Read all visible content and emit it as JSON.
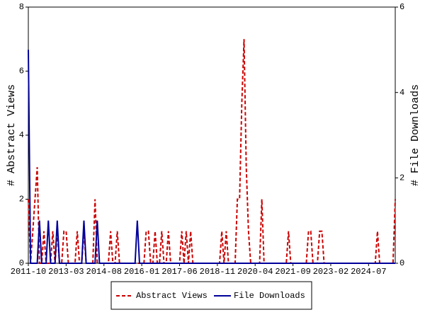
{
  "chart_data": {
    "type": "line",
    "ylabel": "# Abstract Views",
    "y2label": "# File Downloads",
    "ylim": [
      0,
      8
    ],
    "yticks": [
      0,
      2,
      4,
      6,
      8
    ],
    "y2lim": [
      0,
      6
    ],
    "y2ticks": [
      0,
      2,
      4,
      6
    ],
    "categories": [
      "2011-10",
      null,
      null,
      null,
      null,
      null,
      null,
      null,
      null,
      null,
      null,
      null,
      null,
      null,
      null,
      null,
      null,
      "2013-03",
      null,
      null,
      null,
      null,
      null,
      null,
      null,
      null,
      null,
      null,
      null,
      null,
      null,
      null,
      null,
      null,
      "2014-08",
      null,
      null,
      null,
      null,
      null,
      null,
      null,
      null,
      null,
      null,
      null,
      null,
      null,
      null,
      null,
      null,
      "2016-01",
      null,
      null,
      null,
      null,
      null,
      null,
      null,
      null,
      null,
      null,
      null,
      null,
      null,
      null,
      null,
      null,
      "2017-06",
      null,
      null,
      null,
      null,
      null,
      null,
      null,
      null,
      null,
      null,
      null,
      null,
      null,
      null,
      null,
      null,
      "2018-11",
      null,
      null,
      null,
      null,
      null,
      null,
      null,
      null,
      null,
      null,
      null,
      null,
      null,
      null,
      null,
      null,
      "2020-04",
      null,
      null,
      null,
      null,
      null,
      null,
      null,
      null,
      null,
      null,
      null,
      null,
      null,
      null,
      null,
      null,
      "2021-09",
      null,
      null,
      null,
      null,
      null,
      null,
      null,
      null,
      null,
      null,
      null,
      null,
      null,
      null,
      null,
      null,
      "2023-02",
      null,
      null,
      null,
      null,
      null,
      null,
      null,
      null,
      null,
      null,
      null,
      null,
      null,
      null,
      null,
      null,
      "2024-07",
      null,
      null,
      null,
      null,
      null,
      null,
      null,
      null,
      null,
      null,
      null,
      null
    ],
    "series": [
      {
        "name": "Abstract Views",
        "color": "#cc0000",
        "line_style": "dashed",
        "values": [
          2,
          0,
          1,
          2,
          3,
          0,
          0,
          1,
          0,
          0,
          0,
          1,
          0,
          1,
          0,
          0,
          1,
          1,
          0,
          0,
          0,
          0,
          1,
          0,
          0,
          1,
          0,
          0,
          0,
          0,
          2,
          0,
          0,
          0,
          0,
          0,
          0,
          1,
          0,
          0,
          1,
          0,
          0,
          0,
          0,
          0,
          0,
          0,
          0,
          0,
          0,
          0,
          0,
          1,
          1,
          0,
          0,
          1,
          0,
          0,
          1,
          0,
          0,
          1,
          0,
          0,
          0,
          0,
          0,
          1,
          0,
          1,
          0,
          1,
          0,
          0,
          0,
          0,
          0,
          0,
          0,
          0,
          0,
          0,
          0,
          0,
          0,
          1,
          0,
          1,
          0,
          0,
          0,
          0,
          2,
          2,
          5,
          7,
          3,
          1,
          0,
          0,
          0,
          0,
          0,
          2,
          0,
          0,
          0,
          0,
          0,
          0,
          0,
          0,
          0,
          0,
          0,
          1,
          0,
          0,
          0,
          0,
          0,
          0,
          0,
          0,
          1,
          1,
          0,
          0,
          0,
          1,
          1,
          0,
          0,
          0,
          0,
          0,
          0,
          0,
          0,
          0,
          0,
          0,
          0,
          0,
          0,
          0,
          0,
          0,
          0,
          0,
          0,
          0,
          0,
          0,
          0,
          1,
          0,
          0,
          0,
          0,
          0,
          0,
          0,
          2
        ]
      },
      {
        "name": "File Downloads",
        "color": "#000099",
        "line_style": "solid",
        "axis": "y2",
        "values": [
          5,
          0,
          0,
          0,
          0,
          1,
          0,
          0,
          0,
          1,
          0,
          0,
          0,
          1,
          0,
          0,
          0,
          0,
          0,
          0,
          0,
          0,
          0,
          0,
          0,
          1,
          0,
          0,
          0,
          0,
          0,
          1,
          0,
          0,
          0,
          0,
          0,
          0,
          0,
          0,
          0,
          0,
          0,
          0,
          0,
          0,
          0,
          0,
          0,
          1,
          0,
          0,
          0,
          0,
          0,
          0,
          0,
          0,
          0,
          0,
          0,
          0,
          0,
          0,
          0,
          0,
          0,
          0,
          0,
          0,
          0,
          0,
          0,
          0,
          0,
          0,
          0,
          0,
          0,
          0,
          0,
          0,
          0,
          0,
          0,
          0,
          0,
          0,
          0,
          0,
          0,
          0,
          0,
          0,
          0,
          0,
          0,
          0,
          0,
          0,
          0,
          0,
          0,
          0,
          0,
          0,
          0,
          0,
          0,
          0,
          0,
          0,
          0,
          0,
          0,
          0,
          0,
          0,
          0,
          0,
          0,
          0,
          0,
          0,
          0,
          0,
          0,
          0,
          0,
          0,
          0,
          0,
          0,
          0,
          0,
          0,
          0,
          0,
          0,
          0,
          0,
          0,
          0,
          0,
          0,
          0,
          0,
          0,
          0,
          0,
          0,
          0,
          0,
          0,
          0,
          0,
          0,
          0,
          0,
          0,
          0,
          0,
          0,
          0,
          0,
          0
        ]
      }
    ]
  }
}
